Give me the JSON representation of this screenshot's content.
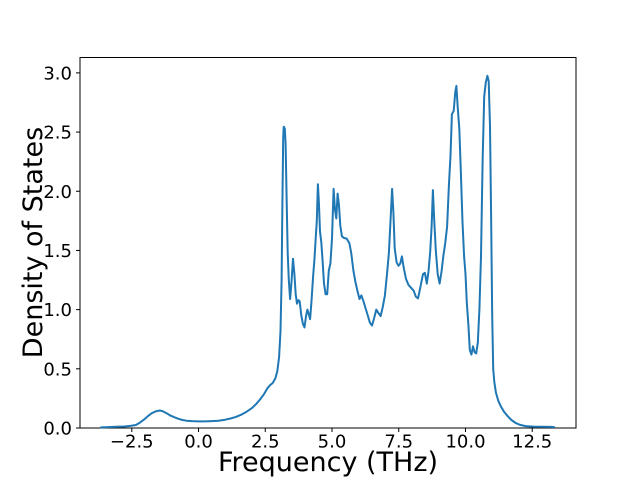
{
  "figure": {
    "background": "#ffffff"
  },
  "chart_data": {
    "type": "line",
    "title": "",
    "xlabel": "Frequency (THz)",
    "ylabel": "Density of States",
    "xlim": [
      -4.44,
      14.14
    ],
    "ylim": [
      0,
      3.13
    ],
    "grid": false,
    "legend": null,
    "xticks": {
      "values": [
        -2.5,
        0.0,
        2.5,
        5.0,
        7.5,
        10.0,
        12.5
      ],
      "labels": [
        "−2.5",
        "0.0",
        "2.5",
        "5.0",
        "7.5",
        "10.0",
        "12.5"
      ]
    },
    "yticks": {
      "values": [
        0.0,
        0.5,
        1.0,
        1.5,
        2.0,
        2.5,
        3.0
      ],
      "labels": [
        "0.0",
        "0.5",
        "1.0",
        "1.5",
        "2.0",
        "2.5",
        "3.0"
      ]
    },
    "series": [
      {
        "name": "density_of_states",
        "color": "#1f77b4",
        "line_width": 2,
        "points": [
          [
            -3.65,
            0.005
          ],
          [
            -3.4,
            0.008
          ],
          [
            -3.1,
            0.01
          ],
          [
            -2.8,
            0.013
          ],
          [
            -2.55,
            0.018
          ],
          [
            -2.35,
            0.025
          ],
          [
            -2.2,
            0.045
          ],
          [
            -2.05,
            0.07
          ],
          [
            -1.9,
            0.1
          ],
          [
            -1.75,
            0.125
          ],
          [
            -1.6,
            0.14
          ],
          [
            -1.45,
            0.148
          ],
          [
            -1.35,
            0.143
          ],
          [
            -1.2,
            0.125
          ],
          [
            -1.05,
            0.105
          ],
          [
            -0.9,
            0.09
          ],
          [
            -0.75,
            0.078
          ],
          [
            -0.6,
            0.068
          ],
          [
            -0.45,
            0.062
          ],
          [
            -0.25,
            0.058
          ],
          [
            0.0,
            0.056
          ],
          [
            0.25,
            0.056
          ],
          [
            0.5,
            0.058
          ],
          [
            0.75,
            0.062
          ],
          [
            1.0,
            0.07
          ],
          [
            1.2,
            0.08
          ],
          [
            1.4,
            0.094
          ],
          [
            1.6,
            0.112
          ],
          [
            1.8,
            0.138
          ],
          [
            2.0,
            0.168
          ],
          [
            2.15,
            0.2
          ],
          [
            2.3,
            0.24
          ],
          [
            2.45,
            0.285
          ],
          [
            2.58,
            0.335
          ],
          [
            2.68,
            0.362
          ],
          [
            2.78,
            0.38
          ],
          [
            2.88,
            0.42
          ],
          [
            2.95,
            0.48
          ],
          [
            3.02,
            0.6
          ],
          [
            3.07,
            0.82
          ],
          [
            3.11,
            1.25
          ],
          [
            3.14,
            1.9
          ],
          [
            3.17,
            2.45
          ],
          [
            3.19,
            2.545
          ],
          [
            3.23,
            2.53
          ],
          [
            3.26,
            2.4
          ],
          [
            3.3,
            1.95
          ],
          [
            3.34,
            1.48
          ],
          [
            3.38,
            1.25
          ],
          [
            3.43,
            1.09
          ],
          [
            3.48,
            1.22
          ],
          [
            3.54,
            1.43
          ],
          [
            3.59,
            1.3
          ],
          [
            3.64,
            1.13
          ],
          [
            3.69,
            1.05
          ],
          [
            3.74,
            1.08
          ],
          [
            3.79,
            1.07
          ],
          [
            3.85,
            0.95
          ],
          [
            3.91,
            0.88
          ],
          [
            3.97,
            0.85
          ],
          [
            4.03,
            0.95
          ],
          [
            4.08,
            1.0
          ],
          [
            4.13,
            0.96
          ],
          [
            4.18,
            0.92
          ],
          [
            4.23,
            1.06
          ],
          [
            4.29,
            1.28
          ],
          [
            4.34,
            1.42
          ],
          [
            4.39,
            1.6
          ],
          [
            4.43,
            1.75
          ],
          [
            4.47,
            2.06
          ],
          [
            4.51,
            1.9
          ],
          [
            4.55,
            1.66
          ],
          [
            4.6,
            1.57
          ],
          [
            4.65,
            1.4
          ],
          [
            4.7,
            1.22
          ],
          [
            4.76,
            1.13
          ],
          [
            4.82,
            1.13
          ],
          [
            4.88,
            1.33
          ],
          [
            4.94,
            1.39
          ],
          [
            5.0,
            1.6
          ],
          [
            5.06,
            2.02
          ],
          [
            5.11,
            1.85
          ],
          [
            5.16,
            1.77
          ],
          [
            5.21,
            1.98
          ],
          [
            5.26,
            1.89
          ],
          [
            5.31,
            1.71
          ],
          [
            5.37,
            1.62
          ],
          [
            5.45,
            1.605
          ],
          [
            5.55,
            1.6
          ],
          [
            5.65,
            1.56
          ],
          [
            5.72,
            1.48
          ],
          [
            5.8,
            1.33
          ],
          [
            5.88,
            1.23
          ],
          [
            5.95,
            1.16
          ],
          [
            6.03,
            1.09
          ],
          [
            6.1,
            1.12
          ],
          [
            6.18,
            1.07
          ],
          [
            6.26,
            1.01
          ],
          [
            6.34,
            0.95
          ],
          [
            6.42,
            0.89
          ],
          [
            6.5,
            0.865
          ],
          [
            6.58,
            0.93
          ],
          [
            6.66,
            1.0
          ],
          [
            6.74,
            0.97
          ],
          [
            6.82,
            0.945
          ],
          [
            6.9,
            1.02
          ],
          [
            6.98,
            1.12
          ],
          [
            7.06,
            1.3
          ],
          [
            7.13,
            1.48
          ],
          [
            7.19,
            1.75
          ],
          [
            7.25,
            2.02
          ],
          [
            7.3,
            1.82
          ],
          [
            7.35,
            1.52
          ],
          [
            7.42,
            1.4
          ],
          [
            7.49,
            1.37
          ],
          [
            7.56,
            1.39
          ],
          [
            7.62,
            1.45
          ],
          [
            7.69,
            1.35
          ],
          [
            7.77,
            1.26
          ],
          [
            7.86,
            1.21
          ],
          [
            7.96,
            1.185
          ],
          [
            8.06,
            1.16
          ],
          [
            8.14,
            1.11
          ],
          [
            8.22,
            1.095
          ],
          [
            8.31,
            1.19
          ],
          [
            8.41,
            1.3
          ],
          [
            8.48,
            1.31
          ],
          [
            8.55,
            1.22
          ],
          [
            8.62,
            1.33
          ],
          [
            8.68,
            1.49
          ],
          [
            8.73,
            1.7
          ],
          [
            8.78,
            2.01
          ],
          [
            8.83,
            1.76
          ],
          [
            8.89,
            1.5
          ],
          [
            8.96,
            1.3
          ],
          [
            9.03,
            1.22
          ],
          [
            9.1,
            1.32
          ],
          [
            9.17,
            1.45
          ],
          [
            9.24,
            1.56
          ],
          [
            9.31,
            1.7
          ],
          [
            9.38,
            2.05
          ],
          [
            9.44,
            2.3
          ],
          [
            9.49,
            2.65
          ],
          [
            9.56,
            2.68
          ],
          [
            9.62,
            2.84
          ],
          [
            9.66,
            2.89
          ],
          [
            9.71,
            2.71
          ],
          [
            9.77,
            2.53
          ],
          [
            9.83,
            2.15
          ],
          [
            9.89,
            1.74
          ],
          [
            9.95,
            1.45
          ],
          [
            10.0,
            1.3
          ],
          [
            10.05,
            1.06
          ],
          [
            10.11,
            0.87
          ],
          [
            10.16,
            0.66
          ],
          [
            10.22,
            0.62
          ],
          [
            10.28,
            0.69
          ],
          [
            10.34,
            0.64
          ],
          [
            10.4,
            0.63
          ],
          [
            10.46,
            0.72
          ],
          [
            10.52,
            1.0
          ],
          [
            10.58,
            1.45
          ],
          [
            10.64,
            2.25
          ],
          [
            10.7,
            2.8
          ],
          [
            10.76,
            2.92
          ],
          [
            10.82,
            2.975
          ],
          [
            10.87,
            2.93
          ],
          [
            10.92,
            2.55
          ],
          [
            10.96,
            1.8
          ],
          [
            11.0,
            0.95
          ],
          [
            11.04,
            0.5
          ],
          [
            11.08,
            0.39
          ],
          [
            11.14,
            0.3
          ],
          [
            11.23,
            0.23
          ],
          [
            11.33,
            0.18
          ],
          [
            11.45,
            0.135
          ],
          [
            11.58,
            0.1
          ],
          [
            11.72,
            0.068
          ],
          [
            11.88,
            0.042
          ],
          [
            12.05,
            0.026
          ],
          [
            12.25,
            0.016
          ],
          [
            12.55,
            0.012
          ],
          [
            12.9,
            0.01
          ],
          [
            13.2,
            0.009
          ],
          [
            13.32,
            0.008
          ]
        ]
      }
    ]
  }
}
